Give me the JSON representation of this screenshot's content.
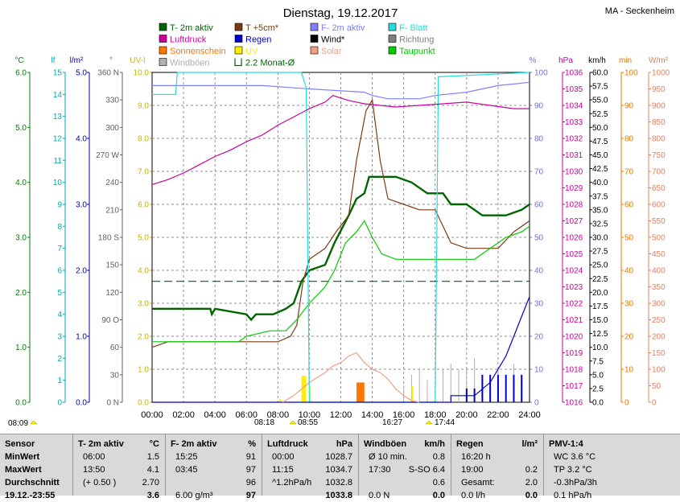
{
  "header": {
    "title": "Dienstag, 19.12.2017",
    "location": "MA - Seckenheim"
  },
  "legend": [
    {
      "label": "T- 2m aktiv",
      "color": "#006400",
      "kind": "box"
    },
    {
      "label": "T +5cm*",
      "color": "#7a3b12",
      "kind": "box"
    },
    {
      "label": "F- 2m aktiv",
      "color": "#7f7fff",
      "kind": "box"
    },
    {
      "label": "F- Blatt",
      "color": "#22dddd",
      "kind": "box"
    },
    {
      "label": "Luftdruck",
      "color": "#cc0099",
      "kind": "box"
    },
    {
      "label": "Regen",
      "color": "#0000cc",
      "kind": "box"
    },
    {
      "label": "Wind*",
      "color": "#000000",
      "kind": "box"
    },
    {
      "label": "Richtung",
      "color": "#808080",
      "kind": "box"
    },
    {
      "label": "Sonnenschein",
      "color": "#ff7700",
      "kind": "box"
    },
    {
      "label": "UV",
      "color": "#ffee00",
      "kind": "box"
    },
    {
      "label": "Solar",
      "color": "#f0a080",
      "kind": "box"
    },
    {
      "label": "Taupunkt",
      "color": "#00cc00",
      "kind": "box"
    },
    {
      "label": "Windböen",
      "color": "#b0b0b0",
      "kind": "box"
    },
    {
      "label": "2.2 Monat-Ø",
      "color": "#006400",
      "kind": "bracket"
    }
  ],
  "axes": {
    "temp": {
      "unit": "°C",
      "color": "#008000",
      "ticks": [
        "0.0",
        "1.0",
        "2.0",
        "3.0",
        "4.0",
        "5.0",
        "6.0"
      ]
    },
    "blatt": {
      "unit": "lf",
      "color": "#00aaaa",
      "ticks": [
        "0",
        "1",
        "2",
        "3",
        "4",
        "5",
        "6",
        "7",
        "8",
        "9",
        "10",
        "11",
        "12",
        "13",
        "14",
        "15"
      ]
    },
    "regen": {
      "unit": "l/m²",
      "color": "#0000aa",
      "ticks": [
        "0.0",
        "1.0",
        "2.0",
        "3.0",
        "4.0",
        "5.0"
      ]
    },
    "richtung": {
      "unit": "°",
      "color": "#606060",
      "ticks": [
        "0 N",
        "30",
        "60",
        "90 O",
        "120",
        "150",
        "180 S",
        "210",
        "240",
        "270 W",
        "300",
        "330",
        "360 N"
      ]
    },
    "uv": {
      "unit": "UV-I",
      "color": "#c8b400",
      "ticks": [
        "0.0",
        "1.0",
        "2.0",
        "3.0",
        "4.0",
        "5.0",
        "6.0",
        "7.0",
        "8.0",
        "9.0",
        "10.0"
      ]
    },
    "feuchte": {
      "unit": "%",
      "color": "#7070dd",
      "ticks": [
        "0",
        "10",
        "20",
        "30",
        "40",
        "50",
        "60",
        "70",
        "80",
        "90",
        "100"
      ]
    },
    "druck": {
      "unit": "hPa",
      "color": "#cc0099",
      "ticks": [
        "1016",
        "1017",
        "1018",
        "1019",
        "1020",
        "1021",
        "1022",
        "1023",
        "1024",
        "1025",
        "1026",
        "1027",
        "1028",
        "1029",
        "1030",
        "1031",
        "1032",
        "1033",
        "1034",
        "1035",
        "1036"
      ]
    },
    "wind": {
      "unit": "km/h",
      "color": "#000000",
      "ticks": [
        "0.0",
        "2.5",
        "5.0",
        "7.5",
        "10.0",
        "12.5",
        "15.0",
        "17.5",
        "20.0",
        "22.5",
        "25.0",
        "27.5",
        "30.0",
        "32.5",
        "35.0",
        "37.5",
        "40.0",
        "42.5",
        "45.0",
        "47.5",
        "50.0",
        "52.5",
        "55.0",
        "57.5",
        "60.0"
      ]
    },
    "sonne": {
      "unit": "min",
      "color": "#ee7700",
      "ticks": [
        "0",
        "10",
        "20",
        "30",
        "40",
        "50",
        "60",
        "70",
        "80",
        "90",
        "100"
      ]
    },
    "solar": {
      "unit": "W/m²",
      "color": "#e08060",
      "ticks": [
        "0",
        "50",
        "100",
        "150",
        "200",
        "250",
        "300",
        "350",
        "400",
        "450",
        "500",
        "550",
        "600",
        "650",
        "700",
        "750",
        "800",
        "850",
        "900",
        "950",
        "1000"
      ]
    }
  },
  "xaxis": {
    "ticks": [
      "00:00",
      "02:00",
      "04:00",
      "06:00",
      "08:00",
      "10:00",
      "12:00",
      "14:00",
      "16:00",
      "18:00",
      "20:00",
      "22:00",
      "24:00"
    ]
  },
  "sun_events": {
    "uv_start": "08:09",
    "sunrise": "08:18",
    "sun_start": "08:55",
    "sun_end": "16:27",
    "sunset": "16:27",
    "dusk": "17:44"
  },
  "chart_data": {
    "type": "line",
    "x_unit": "hours",
    "series": [
      {
        "name": "T- 2m aktiv",
        "axis": "temp",
        "color": "#006400",
        "points": [
          [
            0,
            1.7
          ],
          [
            3.7,
            1.7
          ],
          [
            3.8,
            1.6
          ],
          [
            4.0,
            1.7
          ],
          [
            6.0,
            1.6
          ],
          [
            6.3,
            1.5
          ],
          [
            6.6,
            1.6
          ],
          [
            7.7,
            1.6
          ],
          [
            8.5,
            1.7
          ],
          [
            9.0,
            1.8
          ],
          [
            9.5,
            2.2
          ],
          [
            10.0,
            2.4
          ],
          [
            11.0,
            2.5
          ],
          [
            11.6,
            2.9
          ],
          [
            12.5,
            3.4
          ],
          [
            13.0,
            3.7
          ],
          [
            13.5,
            3.8
          ],
          [
            13.8,
            4.1
          ],
          [
            14.5,
            4.1
          ],
          [
            15.5,
            4.1
          ],
          [
            16.5,
            4.0
          ],
          [
            17.5,
            3.8
          ],
          [
            18.5,
            3.8
          ],
          [
            19.0,
            3.6
          ],
          [
            20.0,
            3.6
          ],
          [
            21.0,
            3.4
          ],
          [
            22.0,
            3.4
          ],
          [
            22.5,
            3.4
          ],
          [
            23.5,
            3.5
          ],
          [
            24.0,
            3.6
          ]
        ]
      },
      {
        "name": "T +5cm*",
        "axis": "temp",
        "color": "#7a3b12",
        "points": [
          [
            0,
            1.0
          ],
          [
            1.0,
            1.1
          ],
          [
            2.0,
            1.1
          ],
          [
            3.0,
            1.1
          ],
          [
            4.0,
            1.1
          ],
          [
            5.0,
            1.1
          ],
          [
            6.0,
            1.1
          ],
          [
            7.0,
            1.1
          ],
          [
            8.0,
            1.1
          ],
          [
            8.8,
            1.2
          ],
          [
            9.2,
            1.4
          ],
          [
            9.6,
            2.2
          ],
          [
            10.0,
            2.6
          ],
          [
            11.0,
            2.8
          ],
          [
            11.7,
            3.1
          ],
          [
            12.5,
            3.4
          ],
          [
            13.0,
            4.4
          ],
          [
            13.6,
            5.3
          ],
          [
            14.0,
            5.5
          ],
          [
            14.5,
            4.4
          ],
          [
            15.0,
            3.7
          ],
          [
            16.0,
            3.6
          ],
          [
            17.0,
            3.5
          ],
          [
            18.0,
            3.5
          ],
          [
            19.0,
            2.9
          ],
          [
            20.0,
            2.8
          ],
          [
            21.0,
            2.8
          ],
          [
            22.0,
            2.8
          ],
          [
            23.0,
            3.1
          ],
          [
            24.0,
            3.3
          ]
        ]
      },
      {
        "name": "Taupunkt",
        "axis": "temp",
        "color": "#00cc00",
        "points": [
          [
            0,
            1.1
          ],
          [
            2.0,
            1.1
          ],
          [
            4.0,
            1.1
          ],
          [
            5.5,
            1.1
          ],
          [
            6.0,
            1.2
          ],
          [
            7.5,
            1.3
          ],
          [
            8.5,
            1.3
          ],
          [
            9.2,
            1.5
          ],
          [
            10.0,
            1.8
          ],
          [
            11.0,
            2.1
          ],
          [
            11.6,
            2.4
          ],
          [
            12.3,
            2.9
          ],
          [
            13.0,
            3.1
          ],
          [
            13.5,
            3.3
          ],
          [
            14.0,
            3.0
          ],
          [
            14.6,
            2.7
          ],
          [
            15.5,
            2.6
          ],
          [
            16.5,
            2.6
          ],
          [
            17.5,
            2.6
          ],
          [
            18.5,
            2.6
          ],
          [
            19.5,
            2.6
          ],
          [
            20.5,
            2.6
          ],
          [
            21.5,
            2.8
          ],
          [
            22.5,
            3.0
          ],
          [
            23.5,
            3.1
          ],
          [
            24.0,
            3.2
          ]
        ]
      },
      {
        "name": "F- 2m aktiv",
        "axis": "feuchte",
        "color": "#7f7fff",
        "points": [
          [
            0,
            96
          ],
          [
            4.0,
            96
          ],
          [
            7.0,
            96
          ],
          [
            10.0,
            95
          ],
          [
            13.5,
            94
          ],
          [
            14.0,
            93
          ],
          [
            15.0,
            92
          ],
          [
            17.0,
            92
          ],
          [
            18.0,
            93
          ],
          [
            20.0,
            94
          ],
          [
            22.0,
            96
          ],
          [
            24.0,
            97
          ]
        ]
      },
      {
        "name": "F- Blatt",
        "axis": "blatt",
        "color": "#22dddd",
        "points": [
          [
            0,
            14.0
          ],
          [
            1.5,
            14.0
          ],
          [
            1.6,
            15.0
          ],
          [
            9.5,
            15.0
          ],
          [
            9.8,
            14.3
          ],
          [
            10.0,
            0.0
          ],
          [
            18.0,
            0.0
          ],
          [
            18.2,
            14.8
          ],
          [
            24.0,
            15.0
          ]
        ]
      },
      {
        "name": "Luftdruck",
        "axis": "druck",
        "color": "#cc0099",
        "points": [
          [
            0,
            1029.2
          ],
          [
            1.0,
            1029.5
          ],
          [
            2.0,
            1029.9
          ],
          [
            3.0,
            1030.4
          ],
          [
            4.0,
            1030.9
          ],
          [
            5.0,
            1031.3
          ],
          [
            6.0,
            1031.8
          ],
          [
            7.0,
            1032.2
          ],
          [
            8.0,
            1032.8
          ],
          [
            9.0,
            1033.3
          ],
          [
            10.0,
            1033.8
          ],
          [
            11.0,
            1034.2
          ],
          [
            11.5,
            1034.6
          ],
          [
            12.5,
            1034.3
          ],
          [
            13.5,
            1034.1
          ],
          [
            14.5,
            1034.0
          ],
          [
            15.5,
            1033.9
          ],
          [
            17.0,
            1034.0
          ],
          [
            18.5,
            1034.1
          ],
          [
            20.0,
            1034.2
          ],
          [
            21.5,
            1034.0
          ],
          [
            23.0,
            1033.8
          ],
          [
            24.0,
            1033.8
          ]
        ]
      },
      {
        "name": "Regen",
        "axis": "regen",
        "color": "#0000cc",
        "points": [
          [
            0,
            0.0
          ],
          [
            19.0,
            0.0
          ],
          [
            19.0,
            0.1
          ],
          [
            20.5,
            0.1
          ],
          [
            21.0,
            0.2
          ],
          [
            21.5,
            0.3
          ],
          [
            22.0,
            0.5
          ],
          [
            22.5,
            0.7
          ],
          [
            23.0,
            1.0
          ],
          [
            23.5,
            1.3
          ],
          [
            24.0,
            1.6
          ]
        ]
      },
      {
        "name": "Solar",
        "axis": "solar",
        "color": "#f0a080",
        "points": [
          [
            8.3,
            0
          ],
          [
            9.0,
            20
          ],
          [
            10.0,
            60
          ],
          [
            11.0,
            90
          ],
          [
            11.5,
            110
          ],
          [
            12.0,
            120
          ],
          [
            12.5,
            140
          ],
          [
            13.0,
            150
          ],
          [
            13.5,
            120
          ],
          [
            14.0,
            100
          ],
          [
            14.5,
            90
          ],
          [
            15.0,
            70
          ],
          [
            15.5,
            40
          ],
          [
            16.0,
            20
          ],
          [
            16.5,
            5
          ],
          [
            17.0,
            0
          ]
        ]
      }
    ],
    "sunshine": {
      "axis": "sonne",
      "color": "#ff7700",
      "bars": [
        [
          13.0,
          13.5,
          6
        ]
      ]
    },
    "uv": {
      "axis": "uv",
      "color": "#ffee00",
      "bars": [
        [
          8.1,
          8.2,
          0.1
        ],
        [
          9.5,
          9.8,
          0.8
        ],
        [
          10.0,
          10.1,
          0.5
        ],
        [
          16.5,
          16.6,
          0.5
        ]
      ]
    },
    "wind_bars": {
      "axis": "wind",
      "color": "#0000cc",
      "bars": [
        [
          20.0,
          2.5
        ],
        [
          20.5,
          2.5
        ],
        [
          21.0,
          5.0
        ],
        [
          21.5,
          5.0
        ],
        [
          22.0,
          5.0
        ],
        [
          22.5,
          5.0
        ],
        [
          23.0,
          5.0
        ],
        [
          23.5,
          5.0
        ]
      ]
    },
    "gusts": {
      "axis": "wind",
      "color": "#b0b0b0",
      "points": [
        [
          16.0,
          3
        ],
        [
          16.5,
          5
        ],
        [
          17.0,
          6
        ],
        [
          17.5,
          4
        ],
        [
          18.5,
          6
        ],
        [
          19.0,
          7
        ],
        [
          19.5,
          6
        ],
        [
          20.0,
          6
        ],
        [
          20.5,
          8
        ],
        [
          21.0,
          5
        ],
        [
          22.0,
          6
        ],
        [
          22.5,
          4
        ],
        [
          23.0,
          7
        ],
        [
          23.5,
          5
        ]
      ]
    },
    "monthly_avg": {
      "axis": "temp",
      "color": "#006400",
      "value": 2.2
    }
  },
  "table": {
    "columns": [
      {
        "header": "Sensor",
        "unit": "",
        "rows": [
          [
            "MinWert",
            ""
          ],
          [
            "MaxWert",
            ""
          ],
          [
            "Durchschnitt",
            ""
          ],
          [
            "19.12.-23:55",
            ""
          ]
        ]
      },
      {
        "header": "T- 2m aktiv",
        "unit": "°C",
        "rows": [
          [
            "06:00",
            "1.5"
          ],
          [
            "13:50",
            "4.1"
          ],
          [
            "(+ 0.50 )",
            "2.70"
          ],
          [
            "",
            "3.6"
          ]
        ]
      },
      {
        "header": "F- 2m aktiv",
        "unit": "%",
        "rows": [
          [
            "15:25",
            "91"
          ],
          [
            "03:45",
            "97"
          ],
          [
            "",
            "96"
          ],
          [
            "6.00 g/m³",
            "97"
          ]
        ]
      },
      {
        "header": "Luftdruck",
        "unit": "hPa",
        "rows": [
          [
            "00:00",
            "1028.7"
          ],
          [
            "11:15",
            "1034.7"
          ],
          [
            "^1.2hPa/h",
            "1032.8"
          ],
          [
            "",
            "1033.8"
          ]
        ]
      },
      {
        "header": "Windböen",
        "unit": "km/h",
        "rows": [
          [
            "Ø 10 min.",
            "0.8"
          ],
          [
            "17:30",
            "S-SO 6.4"
          ],
          [
            "",
            "0.6"
          ],
          [
            "0.0 N",
            "0.0"
          ]
        ]
      },
      {
        "header": "Regen",
        "unit": "l/m²",
        "rows": [
          [
            "16:20 h",
            ""
          ],
          [
            "19:00",
            "0.2"
          ],
          [
            "Gesamt:",
            "2.0"
          ],
          [
            "0.0 l/h",
            "0.0"
          ]
        ]
      },
      {
        "header": "PMV-1:4",
        "unit": "",
        "rows": [
          [
            "WC 3.6 °C",
            ""
          ],
          [
            "TP 3.2 °C",
            ""
          ],
          [
            "-0.3hPa/3h",
            ""
          ],
          [
            "0.1 hPa/h",
            ""
          ]
        ]
      }
    ]
  }
}
